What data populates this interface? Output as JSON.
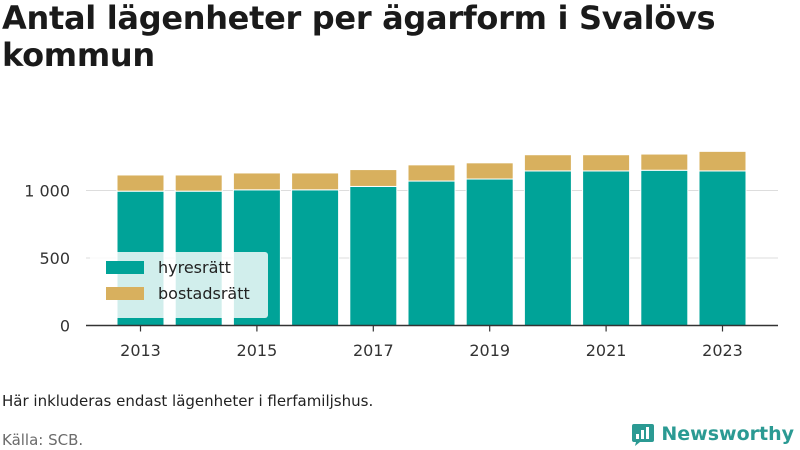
{
  "title": "Antal lägenheter per ägarform i Svalövs kommun",
  "note": "Här inkluderas endast lägenheter i flerfamiljshus.",
  "source": "Källa: SCB.",
  "brand": "Newsworthy",
  "colors": {
    "hyresratt": "#00a398",
    "bostadsratt": "#d8b05e",
    "axis": "#333333",
    "grid": "#dddddd",
    "brand": "#2b9a93"
  },
  "chart_data": {
    "type": "bar",
    "stacked": true,
    "categories": [
      "2013",
      "2014",
      "2015",
      "2016",
      "2017",
      "2018",
      "2019",
      "2020",
      "2021",
      "2022",
      "2023"
    ],
    "x_tick_labels": [
      "2013",
      "2015",
      "2017",
      "2019",
      "2021",
      "2023"
    ],
    "y_ticks": [
      0,
      500,
      1000
    ],
    "y_tick_labels": [
      "0",
      "500",
      "1 000"
    ],
    "ylim": [
      0,
      1300
    ],
    "grid": "horizontal",
    "legend_position": "bottom-left",
    "series": [
      {
        "name": "hyresrätt",
        "color": "#00a398",
        "values": [
          995,
          995,
          1005,
          1005,
          1030,
          1070,
          1085,
          1145,
          1145,
          1150,
          1145
        ]
      },
      {
        "name": "bostadsrätt",
        "color": "#d8b05e",
        "values": [
          120,
          120,
          125,
          125,
          125,
          120,
          120,
          120,
          120,
          120,
          145
        ]
      }
    ]
  }
}
